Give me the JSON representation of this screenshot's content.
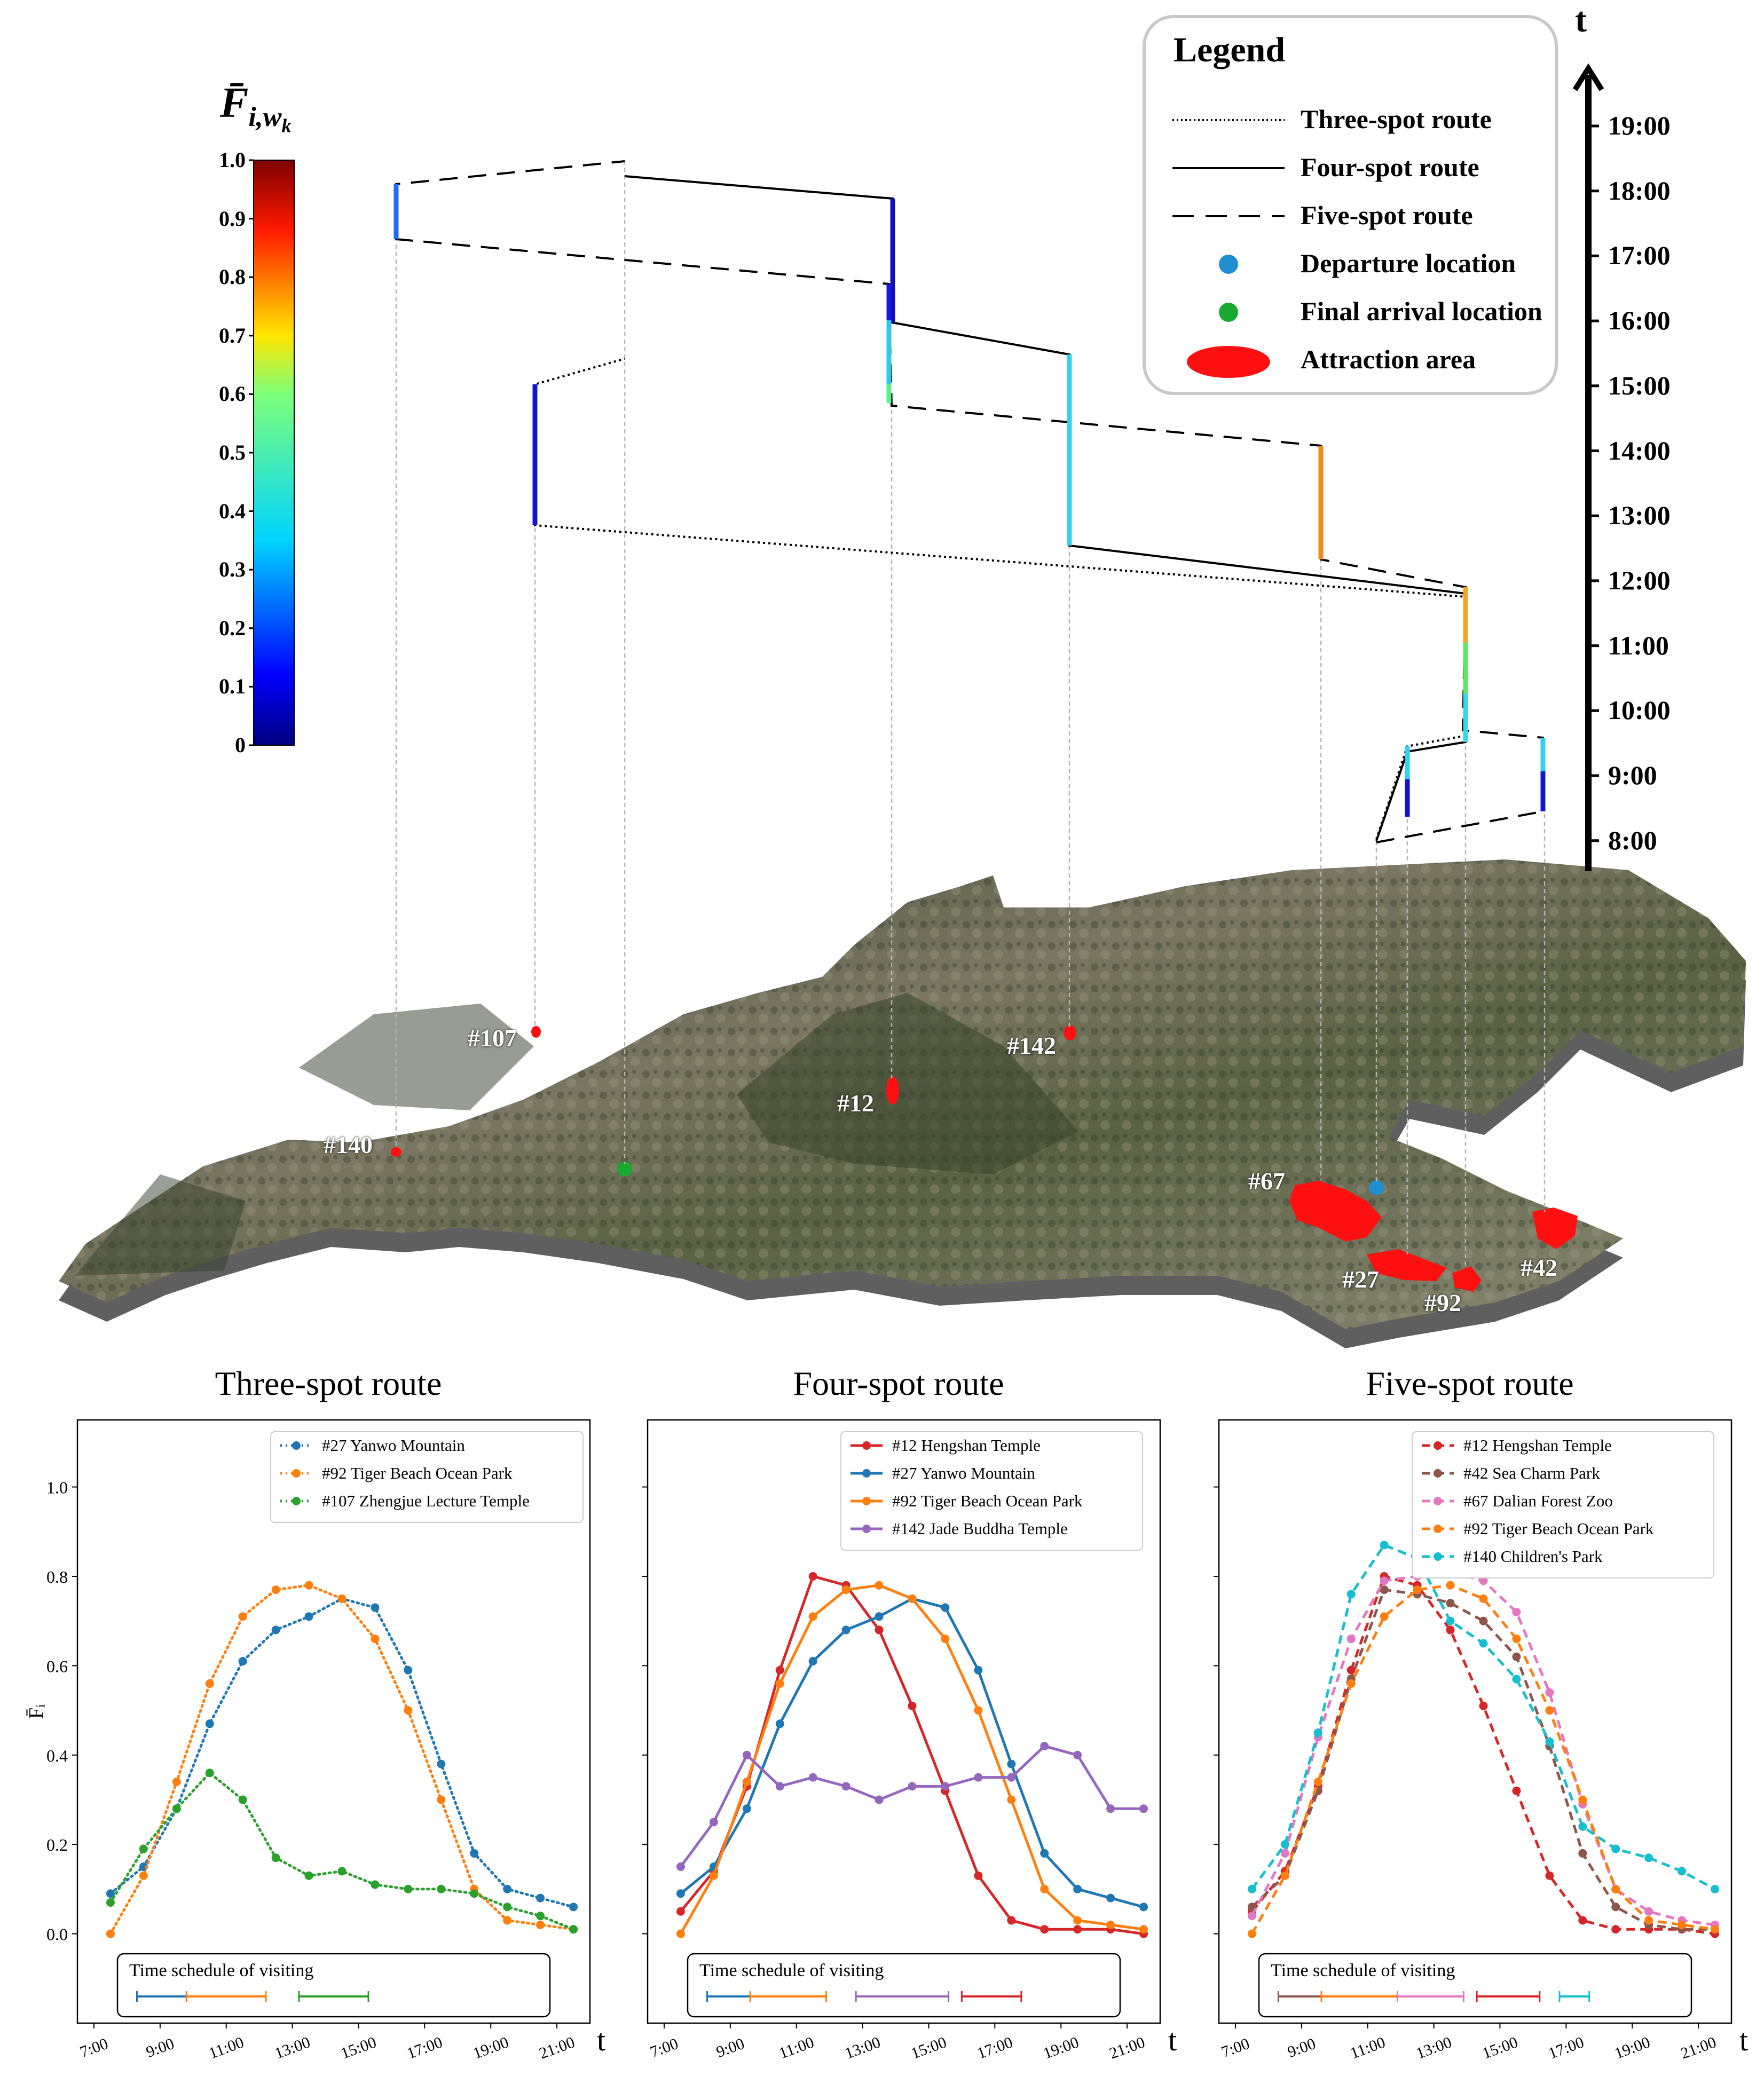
{
  "figure": {
    "fbar_symbol": "F̄",
    "fbar_sub": "i,w",
    "fbar_subsub": "k",
    "time_axis_label": "t",
    "time_ticks": [
      "19:00",
      "18:00",
      "17:00",
      "16:00",
      "15:00",
      "14:00",
      "13:00",
      "12:00",
      "11:00",
      "10:00",
      "9:00",
      "8:00"
    ],
    "colorbar_ticks": [
      "1.0",
      "0.9",
      "0.8",
      "0.7",
      "0.6",
      "0.5",
      "0.4",
      "0.3",
      "0.2",
      "0.1",
      "0"
    ]
  },
  "legend": {
    "title": "Legend",
    "items": [
      {
        "label": "Three-spot route",
        "symbol": "dotted-line"
      },
      {
        "label": "Four-spot route",
        "symbol": "solid-line"
      },
      {
        "label": "Five-spot route",
        "symbol": "dashed-line"
      },
      {
        "label": "Departure location",
        "symbol": "blue-dot"
      },
      {
        "label": "Final arrival location",
        "symbol": "green-dot"
      },
      {
        "label": "Attraction area",
        "symbol": "red-blob"
      }
    ]
  },
  "map_labels": [
    "#107",
    "#142",
    "#12",
    "#140",
    "#67",
    "#27",
    "#92",
    "#42"
  ],
  "colors": {
    "departure": "#1f8fd0",
    "arrival": "#1aa830",
    "attraction": "#ff1010",
    "terrain_dark": "#4b5a3c",
    "terrain_light": "#8a8472"
  },
  "chart_data": [
    {
      "type": "line",
      "title": "Three-spot route",
      "xlabel": "t",
      "ylabel": "F̄ᵢ",
      "ylim": [
        -0.2,
        1.15
      ],
      "xlim": [
        6.5,
        22.0
      ],
      "x_ticks": [
        "7:00",
        "9:00",
        "11:00",
        "13:00",
        "15:00",
        "17:00",
        "19:00",
        "21:00"
      ],
      "y_ticks": [
        "0.0",
        "0.2",
        "0.4",
        "0.6",
        "0.8",
        "1.0"
      ],
      "line_style": "dotted",
      "x": [
        7.5,
        8.5,
        9.5,
        10.5,
        11.5,
        12.5,
        13.5,
        14.5,
        15.5,
        16.5,
        17.5,
        18.5,
        19.5,
        20.5,
        21.5
      ],
      "series": [
        {
          "name": "#27 Yanwo Mountain",
          "color": "#1f77b4",
          "values": [
            0.09,
            0.15,
            0.28,
            0.47,
            0.61,
            0.68,
            0.71,
            0.75,
            0.73,
            0.59,
            0.38,
            0.18,
            0.1,
            0.08,
            0.06
          ]
        },
        {
          "name": "#92 Tiger Beach Ocean Park",
          "color": "#ff7f0e",
          "values": [
            0.0,
            0.13,
            0.34,
            0.56,
            0.71,
            0.77,
            0.78,
            0.75,
            0.66,
            0.5,
            0.3,
            0.1,
            0.03,
            0.02,
            0.01
          ]
        },
        {
          "name": "#107 Zhengjue Lecture Temple",
          "color": "#2ca02c",
          "values": [
            0.07,
            0.19,
            0.28,
            0.36,
            0.3,
            0.17,
            0.13,
            0.14,
            0.11,
            0.1,
            0.1,
            0.09,
            0.06,
            0.04,
            0.01
          ]
        }
      ],
      "schedule_title": "Time schedule of visiting",
      "schedule": [
        {
          "start": 8.3,
          "end": 9.8,
          "color": "#1f77b4"
        },
        {
          "start": 9.8,
          "end": 12.2,
          "color": "#ff7f0e"
        },
        {
          "start": 13.2,
          "end": 15.3,
          "color": "#2ca02c"
        }
      ]
    },
    {
      "type": "line",
      "title": "Four-spot route",
      "xlabel": "t",
      "ylim": [
        -0.2,
        1.15
      ],
      "xlim": [
        6.5,
        22.0
      ],
      "x_ticks": [
        "7:00",
        "9:00",
        "11:00",
        "13:00",
        "15:00",
        "17:00",
        "19:00",
        "21:00"
      ],
      "line_style": "solid",
      "x": [
        7.5,
        8.5,
        9.5,
        10.5,
        11.5,
        12.5,
        13.5,
        14.5,
        15.5,
        16.5,
        17.5,
        18.5,
        19.5,
        20.5,
        21.5
      ],
      "series": [
        {
          "name": "#12 Hengshan Temple",
          "color": "#d62728",
          "values": [
            0.05,
            0.14,
            0.33,
            0.59,
            0.8,
            0.78,
            0.68,
            0.51,
            0.32,
            0.13,
            0.03,
            0.01,
            0.01,
            0.01,
            0.0
          ]
        },
        {
          "name": "#27 Yanwo Mountain",
          "color": "#1f77b4",
          "values": [
            0.09,
            0.15,
            0.28,
            0.47,
            0.61,
            0.68,
            0.71,
            0.75,
            0.73,
            0.59,
            0.38,
            0.18,
            0.1,
            0.08,
            0.06
          ]
        },
        {
          "name": "#92 Tiger Beach Ocean Park",
          "color": "#ff7f0e",
          "values": [
            0.0,
            0.13,
            0.34,
            0.56,
            0.71,
            0.77,
            0.78,
            0.75,
            0.66,
            0.5,
            0.3,
            0.1,
            0.03,
            0.02,
            0.01
          ]
        },
        {
          "name": "#142 Jade Buddha Temple",
          "color": "#9467bd",
          "values": [
            0.15,
            0.25,
            0.4,
            0.33,
            0.35,
            0.33,
            0.3,
            0.33,
            0.33,
            0.35,
            0.35,
            0.42,
            0.4,
            0.28,
            0.28
          ]
        }
      ],
      "schedule_title": "Time schedule of visiting",
      "schedule": [
        {
          "start": 8.3,
          "end": 9.6,
          "color": "#1f77b4"
        },
        {
          "start": 9.6,
          "end": 11.9,
          "color": "#ff7f0e"
        },
        {
          "start": 12.8,
          "end": 15.6,
          "color": "#9467bd"
        },
        {
          "start": 16.0,
          "end": 17.8,
          "color": "#d62728"
        }
      ]
    },
    {
      "type": "line",
      "title": "Five-spot route",
      "xlabel": "t",
      "ylim": [
        -0.2,
        1.15
      ],
      "xlim": [
        6.5,
        22.0
      ],
      "x_ticks": [
        "7:00",
        "9:00",
        "11:00",
        "13:00",
        "15:00",
        "17:00",
        "19:00",
        "21:00"
      ],
      "line_style": "dashed",
      "x": [
        7.5,
        8.5,
        9.5,
        10.5,
        11.5,
        12.5,
        13.5,
        14.5,
        15.5,
        16.5,
        17.5,
        18.5,
        19.5,
        20.5,
        21.5
      ],
      "series": [
        {
          "name": "#12 Hengshan Temple",
          "color": "#d62728",
          "values": [
            0.05,
            0.14,
            0.33,
            0.59,
            0.8,
            0.78,
            0.68,
            0.51,
            0.32,
            0.13,
            0.03,
            0.01,
            0.01,
            0.01,
            0.0
          ]
        },
        {
          "name": "#42 Sea Charm Park",
          "color": "#8c564b",
          "values": [
            0.06,
            0.13,
            0.32,
            0.57,
            0.77,
            0.76,
            0.74,
            0.7,
            0.62,
            0.42,
            0.18,
            0.06,
            0.02,
            0.01,
            0.01
          ]
        },
        {
          "name": "#67 Dalian Forest Zoo",
          "color": "#e377c2",
          "values": [
            0.04,
            0.18,
            0.44,
            0.66,
            0.79,
            0.8,
            0.81,
            0.79,
            0.72,
            0.54,
            0.29,
            0.1,
            0.05,
            0.03,
            0.02
          ]
        },
        {
          "name": "#92 Tiger Beach Ocean Park",
          "color": "#ff7f0e",
          "values": [
            0.0,
            0.13,
            0.34,
            0.56,
            0.71,
            0.77,
            0.78,
            0.75,
            0.66,
            0.5,
            0.3,
            0.1,
            0.03,
            0.02,
            0.01
          ]
        },
        {
          "name": "#140 Children's Park",
          "color": "#17becf",
          "values": [
            0.1,
            0.2,
            0.45,
            0.76,
            0.87,
            0.84,
            0.7,
            0.65,
            0.57,
            0.43,
            0.24,
            0.19,
            0.17,
            0.14,
            0.1
          ]
        }
      ],
      "schedule_title": "Time schedule of visiting",
      "schedule": [
        {
          "start": 8.3,
          "end": 9.6,
          "color": "#8c564b"
        },
        {
          "start": 9.6,
          "end": 11.9,
          "color": "#ff7f0e"
        },
        {
          "start": 11.9,
          "end": 13.9,
          "color": "#e377c2"
        },
        {
          "start": 14.3,
          "end": 16.2,
          "color": "#d62728"
        },
        {
          "start": 16.8,
          "end": 17.7,
          "color": "#17becf"
        }
      ]
    }
  ]
}
